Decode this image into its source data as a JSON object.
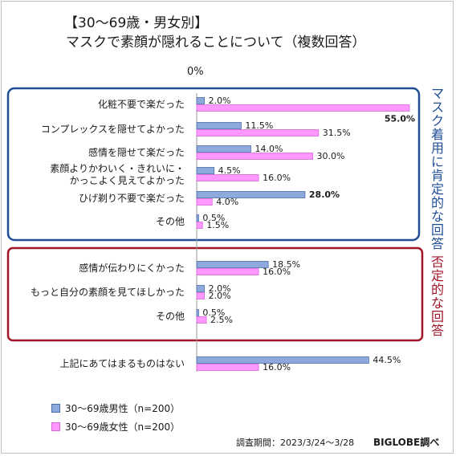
{
  "title_line1": "【30～69歳・男女別】",
  "title_line2": "マスクで素顔が隠れることについて（複数回答）",
  "zero_label": "0%",
  "group_positive": "マスク着用に肯定的な回答",
  "group_negative": "否定的な回答",
  "legend": [
    "30～69歳男性（n=200）",
    "30～69歳女性（n=200）"
  ],
  "survey_period": "調査期間：2023/3/24～3/28",
  "brand": "BIGLOBE調べ",
  "colors": {
    "male": "#8ea9db",
    "male_stroke": "#4a6fa8",
    "female": "#ff99ff",
    "female_stroke": "#d966d9",
    "positive_box": "#1f4e96",
    "negative_box": "#a01427",
    "highlight_female": "#b5006b",
    "highlight_male": "#17365d"
  },
  "chart_data": {
    "type": "bar",
    "orientation": "horizontal",
    "xlim": [
      0,
      55
    ],
    "unit": "%",
    "categories": [
      "化粧不要で楽だった",
      "コンプレックスを隠せてよかった",
      "感情を隠せて楽だった",
      "素顔よりかわいく・きれいに・かっこよく見えてよかった",
      "ひげ剃り不要で楽だった",
      "その他",
      "感情が伝わりにくかった",
      "もっと自分の素顔を見てほしかった",
      "その他",
      "上記にあてはまるものはない"
    ],
    "category_lines": [
      [
        "化粧不要で楽だった"
      ],
      [
        "コンプレックスを隠せてよかった"
      ],
      [
        "感情を隠せて楽だった"
      ],
      [
        "素顔よりかわいく・きれいに・",
        "かっこよく見えてよかった"
      ],
      [
        "ひげ剃り不要で楽だった"
      ],
      [
        "その他"
      ],
      [
        "感情が伝わりにくかった"
      ],
      [
        "もっと自分の素顔を見てほしかった"
      ],
      [
        "その他"
      ],
      [
        "上記にあてはまるものはない"
      ]
    ],
    "series": [
      {
        "name": "30～69歳男性（n=200）",
        "values": [
          2.0,
          11.5,
          14.0,
          4.5,
          28.0,
          0.5,
          18.5,
          2.0,
          0.5,
          44.5
        ],
        "labels": [
          "2.0%",
          "11.5%",
          "14.0%",
          "4.5%",
          "28.0%",
          "0.5%",
          "18.5%",
          "2.0%",
          "0.5%",
          "44.5%"
        ]
      },
      {
        "name": "30～69歳女性（n=200）",
        "values": [
          55.0,
          31.5,
          30.0,
          16.0,
          4.0,
          1.5,
          16.0,
          2.0,
          2.5,
          16.0
        ],
        "labels": [
          "55.0%",
          "31.5%",
          "30.0%",
          "16.0%",
          "4.0%",
          "1.5%",
          "16.0%",
          "2.0%",
          "2.5%",
          "16.0%"
        ]
      }
    ],
    "highlighted": [
      {
        "series": 1,
        "index": 0
      },
      {
        "series": 0,
        "index": 4
      }
    ]
  }
}
